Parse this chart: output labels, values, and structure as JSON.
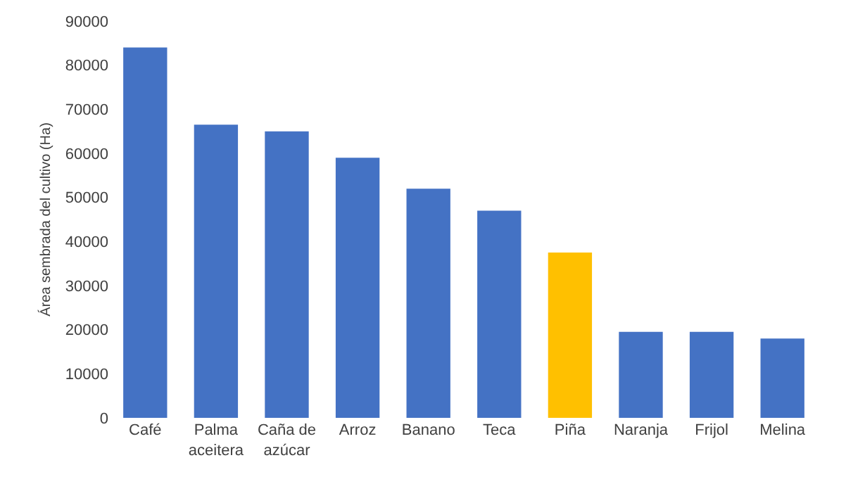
{
  "chart_data": {
    "type": "bar",
    "ylabel": "Área sembrada del cultivo (Ha)",
    "categories": [
      "Café",
      "Palma aceitera",
      "Caña de azúcar",
      "Arroz",
      "Banano",
      "Teca",
      "Piña",
      "Naranja",
      "Frijol",
      "Melina"
    ],
    "values": [
      84000,
      66500,
      65000,
      59000,
      52000,
      47000,
      37500,
      19500,
      19500,
      18000
    ],
    "colors": [
      "#4472c4",
      "#4472c4",
      "#4472c4",
      "#4472c4",
      "#4472c4",
      "#4472c4",
      "#ffc000",
      "#4472c4",
      "#4472c4",
      "#4472c4"
    ],
    "ylim": [
      0,
      90000
    ],
    "yticks": [
      0,
      10000,
      20000,
      30000,
      40000,
      50000,
      60000,
      70000,
      80000,
      90000
    ]
  }
}
